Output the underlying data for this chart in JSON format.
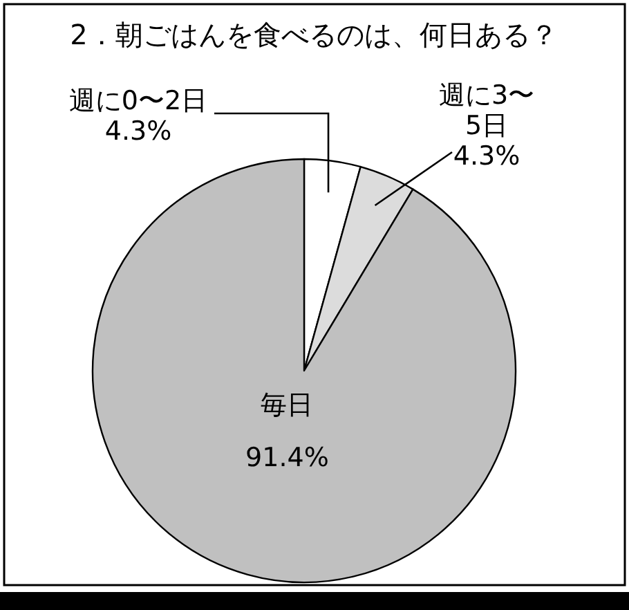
{
  "chart_data": {
    "type": "pie",
    "title": "2．朝ごはんを食べるのは、何日ある？",
    "categories": [
      "週に0〜2日",
      "週に3〜5日",
      "毎日"
    ],
    "values": [
      4.3,
      4.3,
      91.4
    ],
    "colors": [
      "#ffffff",
      "#dcdcdc",
      "#c0c0c0"
    ],
    "value_labels": [
      "4.3%",
      "4.3%",
      "91.4%"
    ]
  }
}
